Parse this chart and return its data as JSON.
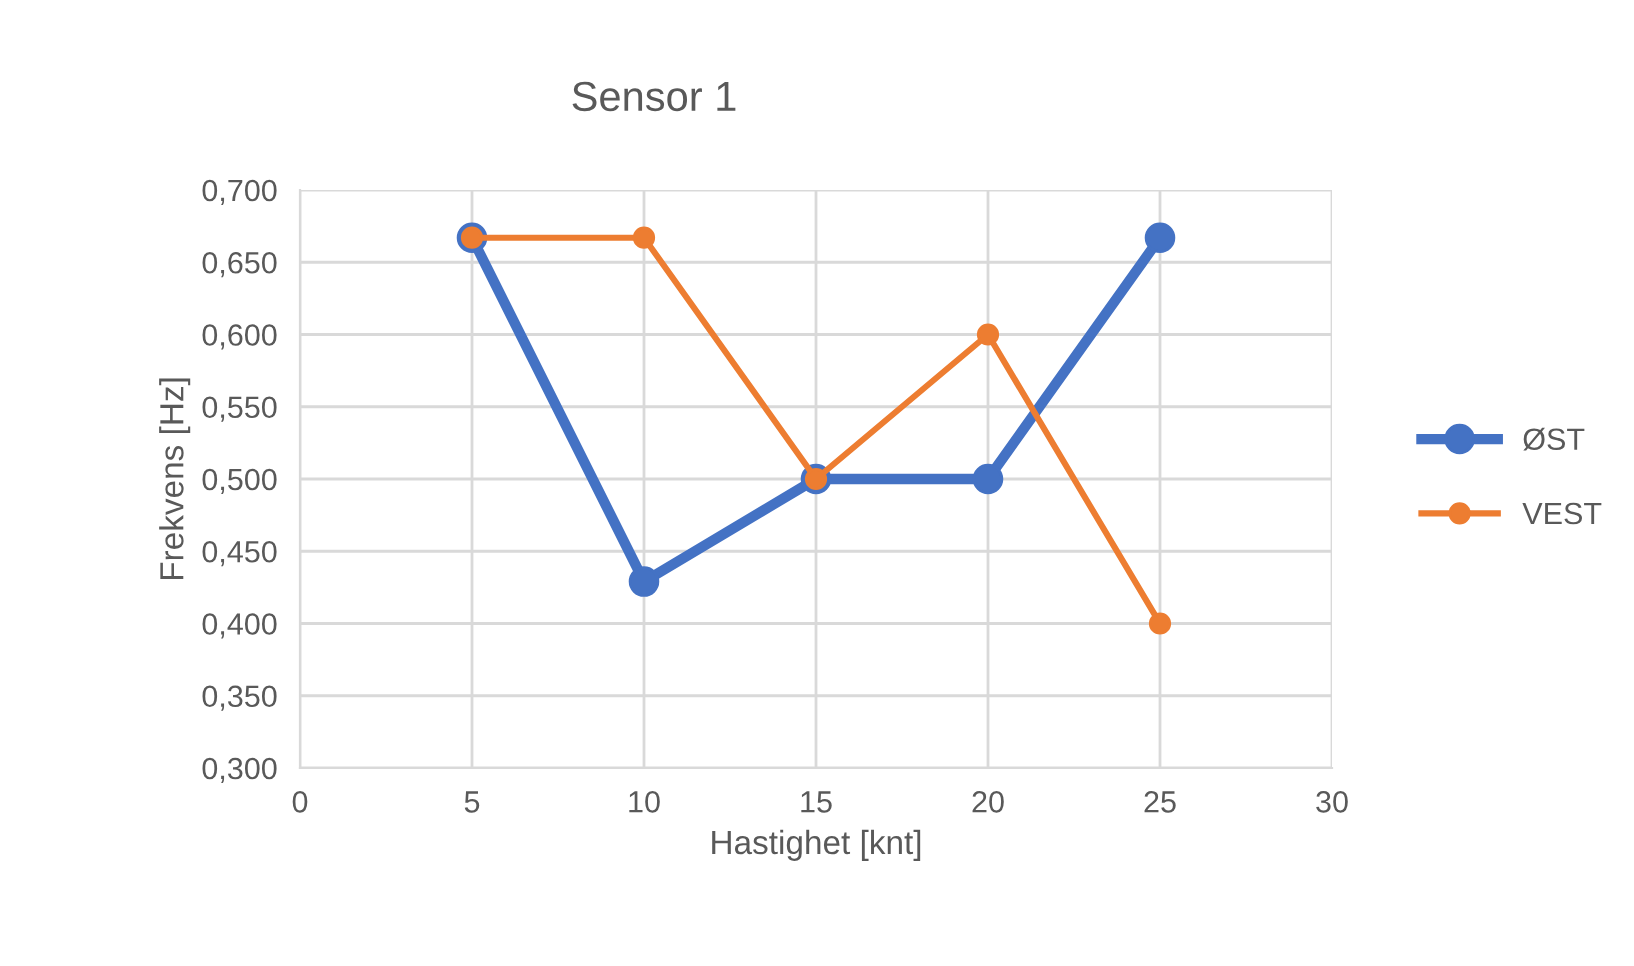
{
  "chart_data": {
    "type": "line",
    "title": "Sensor 1",
    "xlabel": "Hastighet [knt]",
    "ylabel": "Frekvens [Hz]",
    "x": [
      5,
      10,
      15,
      20,
      25
    ],
    "series": [
      {
        "name": "ØST",
        "color": "#4472c4",
        "values": [
          0.667,
          0.429,
          0.5,
          0.5,
          0.667
        ]
      },
      {
        "name": "VEST",
        "color": "#ed7d31",
        "values": [
          0.667,
          0.667,
          0.5,
          0.6,
          0.4
        ]
      }
    ],
    "xlim": [
      0,
      30
    ],
    "xticks": [
      0,
      5,
      10,
      15,
      20,
      25,
      30
    ],
    "ylim": [
      0.3,
      0.7
    ],
    "yticks": [
      {
        "value": 0.3,
        "label": "0,300"
      },
      {
        "value": 0.35,
        "label": "0,350"
      },
      {
        "value": 0.4,
        "label": "0,400"
      },
      {
        "value": 0.45,
        "label": "0,450"
      },
      {
        "value": 0.5,
        "label": "0,500"
      },
      {
        "value": 0.55,
        "label": "0,550"
      },
      {
        "value": 0.6,
        "label": "0,600"
      },
      {
        "value": 0.65,
        "label": "0,650"
      },
      {
        "value": 0.7,
        "label": "0,700"
      }
    ],
    "grid": true,
    "legend": "right",
    "marker": "circle",
    "line_style": "solid"
  }
}
